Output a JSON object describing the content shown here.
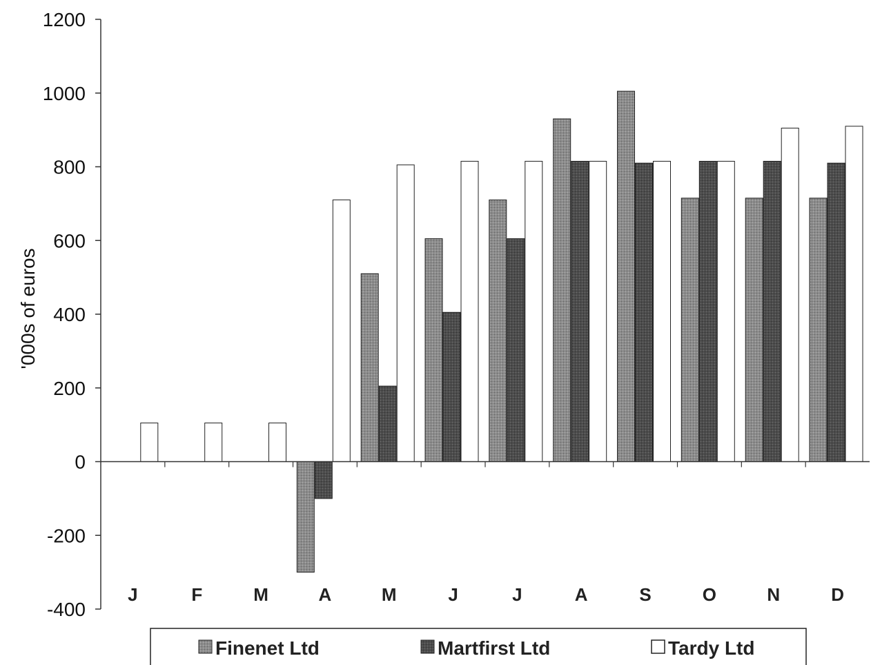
{
  "chart_data": {
    "type": "bar",
    "title": "",
    "xlabel": "",
    "ylabel": "'000s of euros",
    "ylim": [
      -400,
      1200
    ],
    "yticks": [
      1200,
      1000,
      800,
      600,
      400,
      200,
      0,
      -200,
      -400
    ],
    "categories": [
      "J",
      "F",
      "M",
      "A",
      "M",
      "J",
      "J",
      "A",
      "S",
      "O",
      "N",
      "D"
    ],
    "series": [
      {
        "name": "Finenet Ltd",
        "color": "#8c8c8c",
        "values": [
          0,
          0,
          0,
          -300,
          510,
          605,
          710,
          930,
          1005,
          715,
          715,
          715
        ]
      },
      {
        "name": "Martfirst Ltd",
        "color": "#4d4d4d",
        "values": [
          0,
          0,
          0,
          -100,
          205,
          405,
          605,
          815,
          810,
          815,
          815,
          810
        ]
      },
      {
        "name": "Tardy Ltd",
        "color": "#ffffff",
        "values": [
          105,
          105,
          105,
          710,
          805,
          815,
          815,
          815,
          815,
          815,
          905,
          910
        ]
      }
    ],
    "grid": false,
    "legend_position": "bottom"
  }
}
